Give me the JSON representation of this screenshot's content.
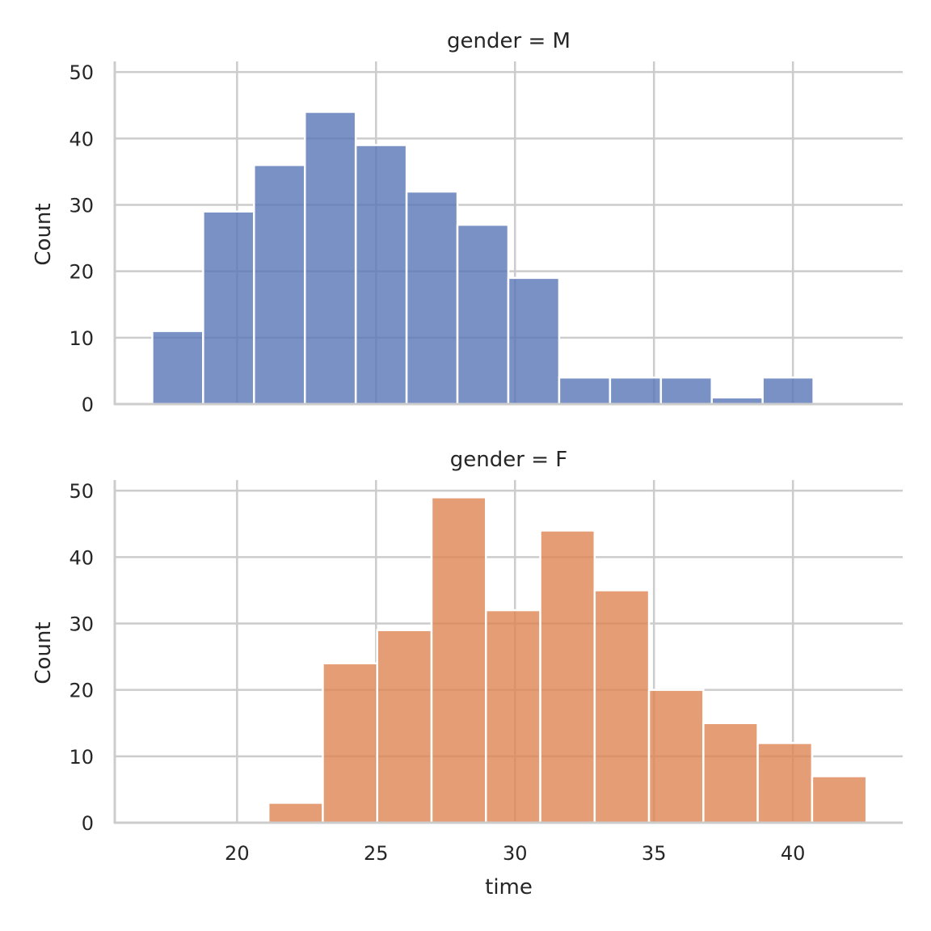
{
  "chart_data": [
    {
      "type": "bar",
      "title": "gender = M",
      "xlabel": "",
      "ylabel": "Count",
      "xlim": [
        15.6,
        43.95
      ],
      "ylim": [
        0,
        51.6
      ],
      "xticks": [
        20,
        25,
        30,
        35,
        40
      ],
      "yticks": [
        0,
        10,
        20,
        30,
        40,
        50
      ],
      "grid": true,
      "color": "#5876b6",
      "bin_start": 16.95,
      "bin_width": 1.83,
      "values": [
        11,
        29,
        36,
        44,
        39,
        32,
        27,
        19,
        4,
        4,
        4,
        1,
        4
      ]
    },
    {
      "type": "bar",
      "title": "gender = F",
      "xlabel": "time",
      "ylabel": "Count",
      "xlim": [
        15.6,
        43.95
      ],
      "ylim": [
        0,
        51.6
      ],
      "xticks": [
        20,
        25,
        30,
        35,
        40
      ],
      "yticks": [
        0,
        10,
        20,
        30,
        40,
        50
      ],
      "grid": true,
      "color": "#dd8452",
      "bin_start": 21.13,
      "bin_width": 1.956,
      "values": [
        3,
        24,
        29,
        49,
        32,
        44,
        35,
        20,
        15,
        12,
        7
      ]
    }
  ]
}
